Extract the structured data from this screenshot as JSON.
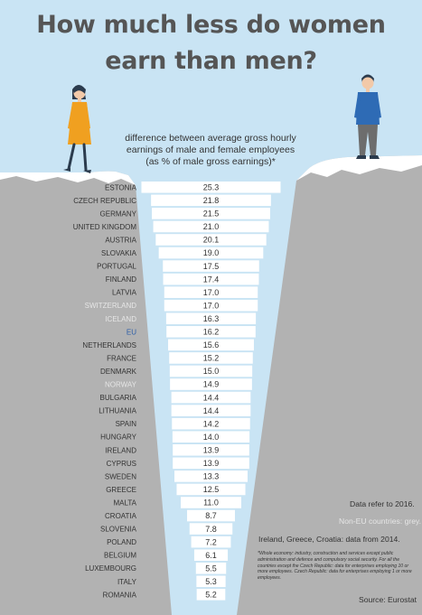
{
  "title_line1": "How much less do women",
  "title_line2": "earn than men?",
  "subtitle_line1": "difference between average gross hourly",
  "subtitle_line2": "earnings of male and female employees",
  "subtitle_line3": "(as % of male gross earnings)*",
  "notes": {
    "data_year": "Data refer to 2016.",
    "non_eu": "Non-EU countries: grey.",
    "exception": "Ireland, Greece, Croatia: data from 2014.",
    "footnote": "*Whole economy: industry, construction and services except public administration and defence and compulsory social security. For all the countries except the Czech Republic: data for enterprises employing 10 or more employees. Czech Republic: data for enterprises employing 1 or more employees.",
    "source": "Source: Eurostat"
  },
  "colors": {
    "sky": "#c9e4f4",
    "cliff": "#b2b2b2",
    "snow": "#ffffff",
    "chasm": "#c9e4f4",
    "label_eu_member": "#333333",
    "label_non_eu": "#e6e6e6",
    "label_eu_average": "#2e5fa8",
    "woman_dress": "#f0a020",
    "man_shirt": "#2e6bb5"
  },
  "icons": {
    "woman": "woman-figure-icon",
    "man": "man-figure-icon"
  },
  "chart_data": {
    "type": "bar",
    "title": "How much less do women earn than men?",
    "subtitle": "difference between average gross hourly earnings of male and female employees (as % of male gross earnings)*",
    "categories": [
      "ESTONIA",
      "CZECH REPUBLIC",
      "GERMANY",
      "UNITED KINGDOM",
      "AUSTRIA",
      "SLOVAKIA",
      "PORTUGAL",
      "FINLAND",
      "LATVIA",
      "SWITZERLAND",
      "ICELAND",
      "EU",
      "NETHERLANDS",
      "FRANCE",
      "DENMARK",
      "NORWAY",
      "BULGARIA",
      "LITHUANIA",
      "SPAIN",
      "HUNGARY",
      "IRELAND",
      "CYPRUS",
      "SWEDEN",
      "GREECE",
      "MALTA",
      "CROATIA",
      "SLOVENIA",
      "POLAND",
      "BELGIUM",
      "LUXEMBOURG",
      "ITALY",
      "ROMANIA"
    ],
    "values": [
      25.3,
      21.8,
      21.5,
      21.0,
      20.1,
      19.0,
      17.5,
      17.4,
      17.0,
      17.0,
      16.3,
      16.2,
      15.6,
      15.2,
      15.0,
      14.9,
      14.4,
      14.4,
      14.2,
      14.0,
      13.9,
      13.9,
      13.3,
      12.5,
      11.0,
      8.7,
      7.8,
      7.2,
      6.1,
      5.5,
      5.3,
      5.2
    ],
    "value_labels": [
      "25.3",
      "21.8",
      "21.5",
      "21.0",
      "20.1",
      "19.0",
      "17.5",
      "17.4",
      "17.0",
      "17.0",
      "16.3",
      "16.2",
      "15.6",
      "15.2",
      "15.0",
      "14.9",
      "14.4",
      "14.4",
      "14.2",
      "14.0",
      "13.9",
      "13.9",
      "13.3",
      "12.5",
      "11.0",
      "8.7",
      "7.8",
      "7.2",
      "6.1",
      "5.5",
      "5.3",
      "5.2"
    ],
    "groups": [
      "eu",
      "eu",
      "eu",
      "eu",
      "eu",
      "eu",
      "eu",
      "eu",
      "eu",
      "non-eu",
      "non-eu",
      "eu-average",
      "eu",
      "eu",
      "eu",
      "non-eu",
      "eu",
      "eu",
      "eu",
      "eu",
      "eu",
      "eu",
      "eu",
      "eu",
      "eu",
      "eu",
      "eu",
      "eu",
      "eu",
      "eu",
      "eu",
      "eu"
    ],
    "orientation": "horizontal, centered",
    "xlim": [
      0,
      25.3
    ],
    "grid": false,
    "legend": "none"
  }
}
